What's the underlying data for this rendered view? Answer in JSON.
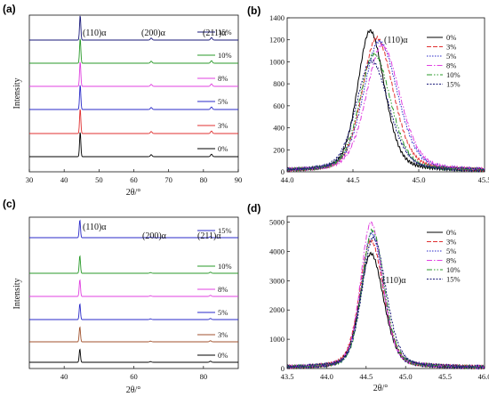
{
  "panels": {
    "a": {
      "label": "(a)",
      "ylabel": "Intensity",
      "xlabel": "2θ/°",
      "peak_labels": [
        "(110)α",
        "(200)α",
        "(211)α"
      ]
    },
    "b": {
      "label": "(b)",
      "annotation": "(110)α"
    },
    "c": {
      "label": "(c)",
      "ylabel": "Intensity",
      "xlabel": "2θ/°",
      "peak_labels": [
        "(110)α",
        "(200)α",
        "(211)α"
      ]
    },
    "d": {
      "label": "(d)",
      "annotation": "(110)α",
      "ylabel": "",
      "xlabel": "2θ/°"
    }
  },
  "chart_data": [
    {
      "id": "a",
      "type": "line",
      "title": "",
      "xlabel": "2θ/°",
      "ylabel": "Intensity",
      "xlim": [
        30,
        90
      ],
      "xticks": [
        30,
        40,
        50,
        60,
        70,
        80,
        90
      ],
      "yticks": [],
      "grid": false,
      "legend": "inline-right",
      "peaks": [
        {
          "x": 44.6,
          "label": "(110)α"
        },
        {
          "x": 65.0,
          "label": "(200)α"
        },
        {
          "x": 82.3,
          "label": "(211)α"
        }
      ],
      "series": [
        {
          "name": "0%",
          "color": "#000000",
          "peak_heights": [
            1.0,
            0.08,
            0.1
          ]
        },
        {
          "name": "3%",
          "color": "#e03030",
          "peak_heights": [
            1.0,
            0.08,
            0.1
          ]
        },
        {
          "name": "5%",
          "color": "#2a2ac8",
          "peak_heights": [
            1.0,
            0.08,
            0.1
          ]
        },
        {
          "name": "8%",
          "color": "#e040e0",
          "peak_heights": [
            1.0,
            0.08,
            0.1
          ]
        },
        {
          "name": "10%",
          "color": "#2a9a2a",
          "peak_heights": [
            1.0,
            0.08,
            0.1
          ]
        },
        {
          "name": "15%",
          "color": "#1a1a7a",
          "peak_heights": [
            1.0,
            0.08,
            0.1
          ]
        }
      ]
    },
    {
      "id": "b",
      "type": "line",
      "title": "",
      "xlabel": "",
      "ylabel": "",
      "xlim": [
        44.0,
        45.5
      ],
      "ylim": [
        0,
        1400
      ],
      "xticks": [
        44.0,
        44.5,
        45.0,
        45.5
      ],
      "yticks": [
        0,
        200,
        400,
        600,
        800,
        1000,
        1200,
        1400
      ],
      "grid": false,
      "legend": "top-right",
      "series": [
        {
          "name": "0%",
          "color": "#000000",
          "dash": "",
          "center": 44.63,
          "height": 1275,
          "width": 0.095
        },
        {
          "name": "3%",
          "color": "#e03030",
          "dash": "5,2",
          "center": 44.68,
          "height": 1210,
          "width": 0.11
        },
        {
          "name": "5%",
          "color": "#2a2ac8",
          "dash": "1.5,1.5",
          "center": 44.7,
          "height": 1180,
          "width": 0.12
        },
        {
          "name": "8%",
          "color": "#e040e0",
          "dash": "6,2,1.5,2",
          "center": 44.72,
          "height": 1140,
          "width": 0.12
        },
        {
          "name": "10%",
          "color": "#2a9a2a",
          "dash": "6,2,1.5,2,1.5,2",
          "center": 44.66,
          "height": 1060,
          "width": 0.11
        },
        {
          "name": "15%",
          "color": "#1a1a7a",
          "dash": "2,1.5",
          "center": 44.64,
          "height": 1000,
          "width": 0.115
        }
      ]
    },
    {
      "id": "c",
      "type": "line",
      "title": "",
      "xlabel": "2θ/°",
      "ylabel": "Intensity",
      "xlim": [
        30,
        90
      ],
      "xticks": [
        40,
        60,
        80
      ],
      "yticks": [],
      "grid": false,
      "legend": "inline-right",
      "peaks": [
        {
          "x": 44.5,
          "label": "(110)α"
        },
        {
          "x": 64.8,
          "label": "(200)α"
        },
        {
          "x": 82.0,
          "label": "(211)α"
        }
      ],
      "series": [
        {
          "name": "0%",
          "color": "#000000",
          "peak_heights": [
            0.75,
            0.04,
            0.06
          ]
        },
        {
          "name": "3%",
          "color": "#a0522d",
          "peak_heights": [
            0.85,
            0.04,
            0.06
          ]
        },
        {
          "name": "5%",
          "color": "#2a2ac8",
          "peak_heights": [
            0.9,
            0.04,
            0.06
          ]
        },
        {
          "name": "8%",
          "color": "#e040e0",
          "peak_heights": [
            0.95,
            0.04,
            0.06
          ]
        },
        {
          "name": "10%",
          "color": "#2a9a2a",
          "peak_heights": [
            1.0,
            0.04,
            0.06
          ]
        },
        {
          "name": "15%",
          "color": "#2a2ac8",
          "peak_heights": [
            1.0,
            0.04,
            0.06
          ]
        }
      ]
    },
    {
      "id": "d",
      "type": "line",
      "title": "",
      "xlabel": "2θ/°",
      "ylabel": "",
      "xlim": [
        43.5,
        46.0
      ],
      "ylim": [
        0,
        5200
      ],
      "xticks": [
        43.5,
        44.0,
        44.5,
        45.0,
        45.5,
        46.0
      ],
      "yticks": [
        0,
        1000,
        2000,
        3000,
        4000,
        5000
      ],
      "grid": false,
      "legend": "top-right",
      "series": [
        {
          "name": "0%",
          "color": "#000000",
          "dash": "",
          "center": 44.56,
          "height": 3900,
          "width": 0.14
        },
        {
          "name": "3%",
          "color": "#e03030",
          "dash": "5,2",
          "center": 44.56,
          "height": 4350,
          "width": 0.14
        },
        {
          "name": "5%",
          "color": "#2a2ac8",
          "dash": "1.5,1.5",
          "center": 44.57,
          "height": 4600,
          "width": 0.13
        },
        {
          "name": "8%",
          "color": "#e040e0",
          "dash": "6,2,1.5,2",
          "center": 44.56,
          "height": 4950,
          "width": 0.13
        },
        {
          "name": "10%",
          "color": "#2a9a2a",
          "dash": "6,2,1.5,2,1.5,2",
          "center": 44.58,
          "height": 4700,
          "width": 0.13
        },
        {
          "name": "15%",
          "color": "#1a1a7a",
          "dash": "2,1.5",
          "center": 44.59,
          "height": 4450,
          "width": 0.14
        }
      ]
    }
  ]
}
